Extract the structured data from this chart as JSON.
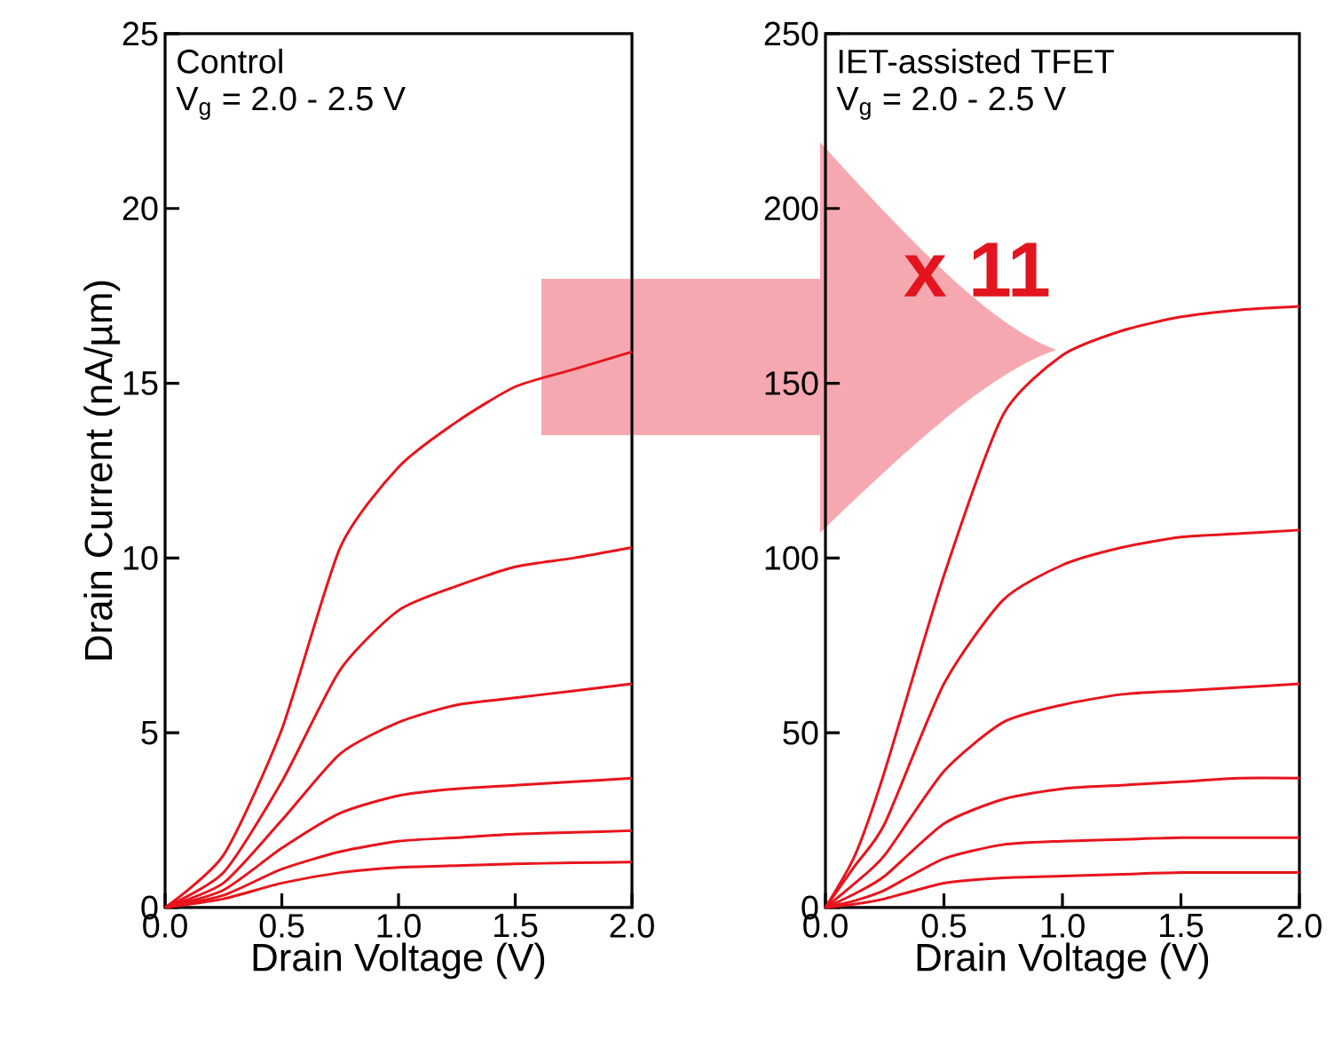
{
  "chart_data": [
    {
      "type": "line",
      "xlabel": "Drain Voltage (V)",
      "ylabel": "Drain Current (nA/µm)",
      "annotations": [
        "Control",
        "V$_{g}$ = 2.0 - 2.5 V"
      ],
      "xlim": [
        0,
        2
      ],
      "ylim": [
        0,
        25
      ],
      "xticks": [
        {
          "value": 0,
          "label": "0.0"
        },
        {
          "value": 0.5,
          "label": "0.5"
        },
        {
          "value": 1,
          "label": "1.0"
        },
        {
          "value": 1.5,
          "label": "1.5"
        },
        {
          "value": 2,
          "label": "2.0"
        }
      ],
      "yticks": [
        0,
        5,
        10,
        15,
        20,
        25
      ],
      "grid": false,
      "marker": "none",
      "line_style": "solid",
      "x": [
        0,
        0.25,
        0.5,
        0.75,
        1.0,
        1.25,
        1.5,
        1.75,
        2.0
      ],
      "series": [
        {
          "color": "#e8141c",
          "values": [
            0,
            1.5,
            5.1,
            10.3,
            12.6,
            13.9,
            14.9,
            15.4,
            15.9
          ]
        },
        {
          "color": "#e8141c",
          "values": [
            0,
            1.0,
            3.6,
            6.8,
            8.5,
            9.2,
            9.75,
            10.0,
            10.3
          ]
        },
        {
          "color": "#e8141c",
          "values": [
            0,
            0.7,
            2.5,
            4.4,
            5.3,
            5.8,
            6.0,
            6.2,
            6.4
          ]
        },
        {
          "color": "#e8141c",
          "values": [
            0,
            0.5,
            1.7,
            2.7,
            3.2,
            3.4,
            3.5,
            3.6,
            3.7
          ]
        },
        {
          "color": "#e8141c",
          "values": [
            0,
            0.35,
            1.1,
            1.6,
            1.9,
            2.0,
            2.1,
            2.15,
            2.2
          ]
        },
        {
          "color": "#e8141c",
          "values": [
            0,
            0.25,
            0.7,
            1.0,
            1.15,
            1.2,
            1.25,
            1.28,
            1.3
          ]
        }
      ]
    },
    {
      "type": "line",
      "xlabel": "Drain Voltage (V)",
      "annotations": [
        "IET-assisted TFET",
        "V$_{g}$ = 2.0 - 2.5 V",
        "x 11"
      ],
      "xlim": [
        0,
        2
      ],
      "ylim": [
        0,
        250
      ],
      "xticks": [
        {
          "value": 0,
          "label": "0.0"
        },
        {
          "value": 0.5,
          "label": "0.5"
        },
        {
          "value": 1,
          "label": "1.0"
        },
        {
          "value": 1.5,
          "label": "1.5"
        },
        {
          "value": 2,
          "label": "2.0"
        }
      ],
      "yticks": [
        0,
        50,
        100,
        150,
        200,
        250
      ],
      "grid": false,
      "marker": "none",
      "line_style": "solid",
      "x": [
        0,
        0.125,
        0.25,
        0.5,
        0.75,
        1.0,
        1.25,
        1.5,
        1.75,
        2.0
      ],
      "series": [
        {
          "color": "#e8141c",
          "values": [
            0,
            15,
            39,
            95,
            141,
            158,
            165,
            169,
            171,
            172
          ]
        },
        {
          "color": "#e8141c",
          "values": [
            0,
            12,
            24,
            64,
            88,
            98,
            103,
            106,
            107,
            108
          ]
        },
        {
          "color": "#e8141c",
          "values": [
            0,
            7,
            15,
            39,
            53,
            58,
            61,
            62,
            63,
            64
          ]
        },
        {
          "color": "#e8141c",
          "values": [
            0,
            4,
            9,
            24,
            31,
            34,
            35,
            36,
            37,
            37
          ]
        },
        {
          "color": "#e8141c",
          "values": [
            0,
            2,
            5,
            14,
            18,
            19,
            19.5,
            20,
            20,
            20
          ]
        },
        {
          "color": "#e8141c",
          "values": [
            0,
            1,
            2.5,
            7,
            8.5,
            9,
            9.5,
            10,
            10,
            10
          ]
        }
      ]
    }
  ]
}
